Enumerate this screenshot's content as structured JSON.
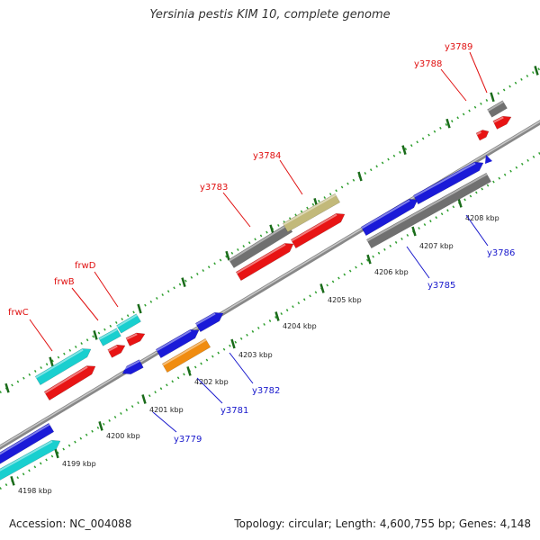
{
  "title": "Yersinia pestis KIM 10, complete genome",
  "footer": {
    "accession": "Accession: NC_004088",
    "genome_info": "Topology: circular; Length: 4,600,755 bp; Genes: 4,148"
  },
  "colors": {
    "backbone": "#9a9a9a",
    "dots": "#2e9e2e",
    "tick": "#1a6b1a",
    "label_top": "#e01010",
    "label_bottom": "#1818cc",
    "cyan": "#19cfcf",
    "red": "#e81414",
    "blue": "#1a1ad8",
    "gray": "#707070",
    "khaki": "#c2b97a",
    "orange": "#f08c10"
  },
  "ticks": [
    {
      "label": "4198 kbp"
    },
    {
      "label": "4199 kbp"
    },
    {
      "label": "4200 kbp"
    },
    {
      "label": "4201 kbp"
    },
    {
      "label": "4202 kbp"
    },
    {
      "label": "4203 kbp"
    },
    {
      "label": "4204 kbp"
    },
    {
      "label": "4205 kbp"
    },
    {
      "label": "4206 kbp"
    },
    {
      "label": "4207 kbp"
    },
    {
      "label": "4208 kbp"
    }
  ],
  "genes": {
    "frwC": "frwC",
    "frwB": "frwB",
    "frwD": "frwD",
    "y3783": "y3783",
    "y3784": "y3784",
    "y3788": "y3788",
    "y3789": "y3789",
    "y3779": "y3779",
    "y3781": "y3781",
    "y3782": "y3782",
    "y3785": "y3785",
    "y3786": "y3786"
  }
}
